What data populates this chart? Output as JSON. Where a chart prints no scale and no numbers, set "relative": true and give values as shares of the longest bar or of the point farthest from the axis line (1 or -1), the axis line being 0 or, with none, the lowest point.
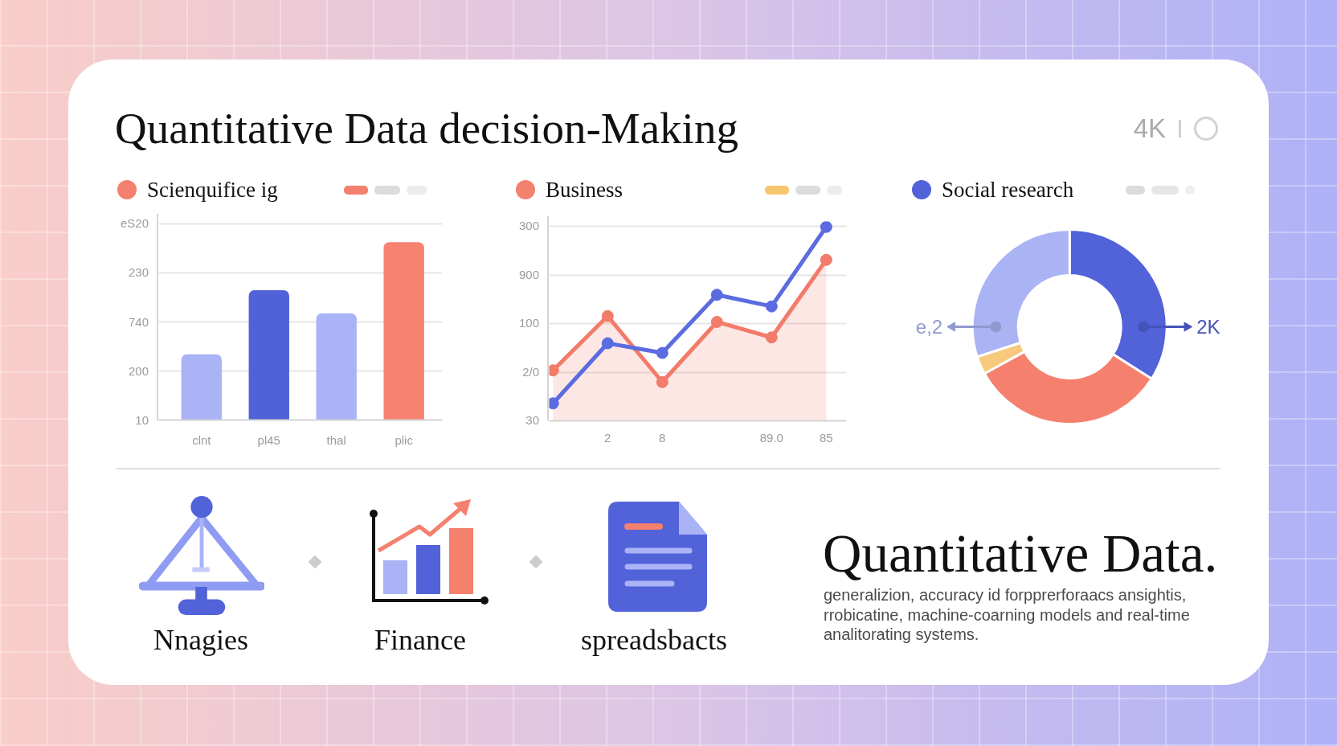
{
  "chart_data": [
    {
      "type": "other",
      "title": "Quantitative Data decision-Making",
      "annotations": [
        "4K"
      ]
    },
    {
      "type": "bar",
      "title": "Scienquifice ig",
      "categories": [
        "clnt",
        "pl45",
        "thal",
        "plic"
      ],
      "values": [
        0.37,
        0.73,
        0.6,
        1
      ],
      "colors": [
        "#a9b3f6",
        "#5161d8",
        "#a9b3f6",
        "#f6826f"
      ],
      "relative": true,
      "grid": "y",
      "annotations": [
        "eS20",
        "230",
        "740",
        "200",
        "10"
      ]
    },
    {
      "type": "line",
      "title": "Business",
      "categories": [
        null,
        "2",
        "8",
        null,
        "89.0",
        "85"
      ],
      "series": [
        {
          "type": "area",
          "color": "#f27b69",
          "values": [
            0.26,
            0.54,
            0.2,
            0.51,
            0.43,
            0.83
          ]
        },
        {
          "color": "#5b6be0",
          "values": [
            0.09,
            0.4,
            0.35,
            0.65,
            0.59,
            1
          ]
        }
      ],
      "relative": true,
      "grid": "y",
      "marker": "circle",
      "annotations": [
        "300",
        "900",
        "100",
        "2/0",
        "30"
      ]
    },
    {
      "type": "donut",
      "title": "Social research",
      "categories": [
        "2K",
        null,
        null,
        "e,2"
      ],
      "values": [
        34,
        33,
        3,
        30
      ],
      "colors": [
        "#5262d9",
        "#f5806e",
        "#f7c97c",
        "#aab4f5"
      ]
    },
    {
      "type": "other",
      "title": "Quantitative Data.",
      "annotations": [
        "Nnagies",
        "Finance",
        "spreadsbacts",
        "generalizion, accuracy id forpprerforaacs ansightis,\nrrobicatine, machine-coarning models and real-time\nanalitorating systems."
      ]
    }
  ]
}
